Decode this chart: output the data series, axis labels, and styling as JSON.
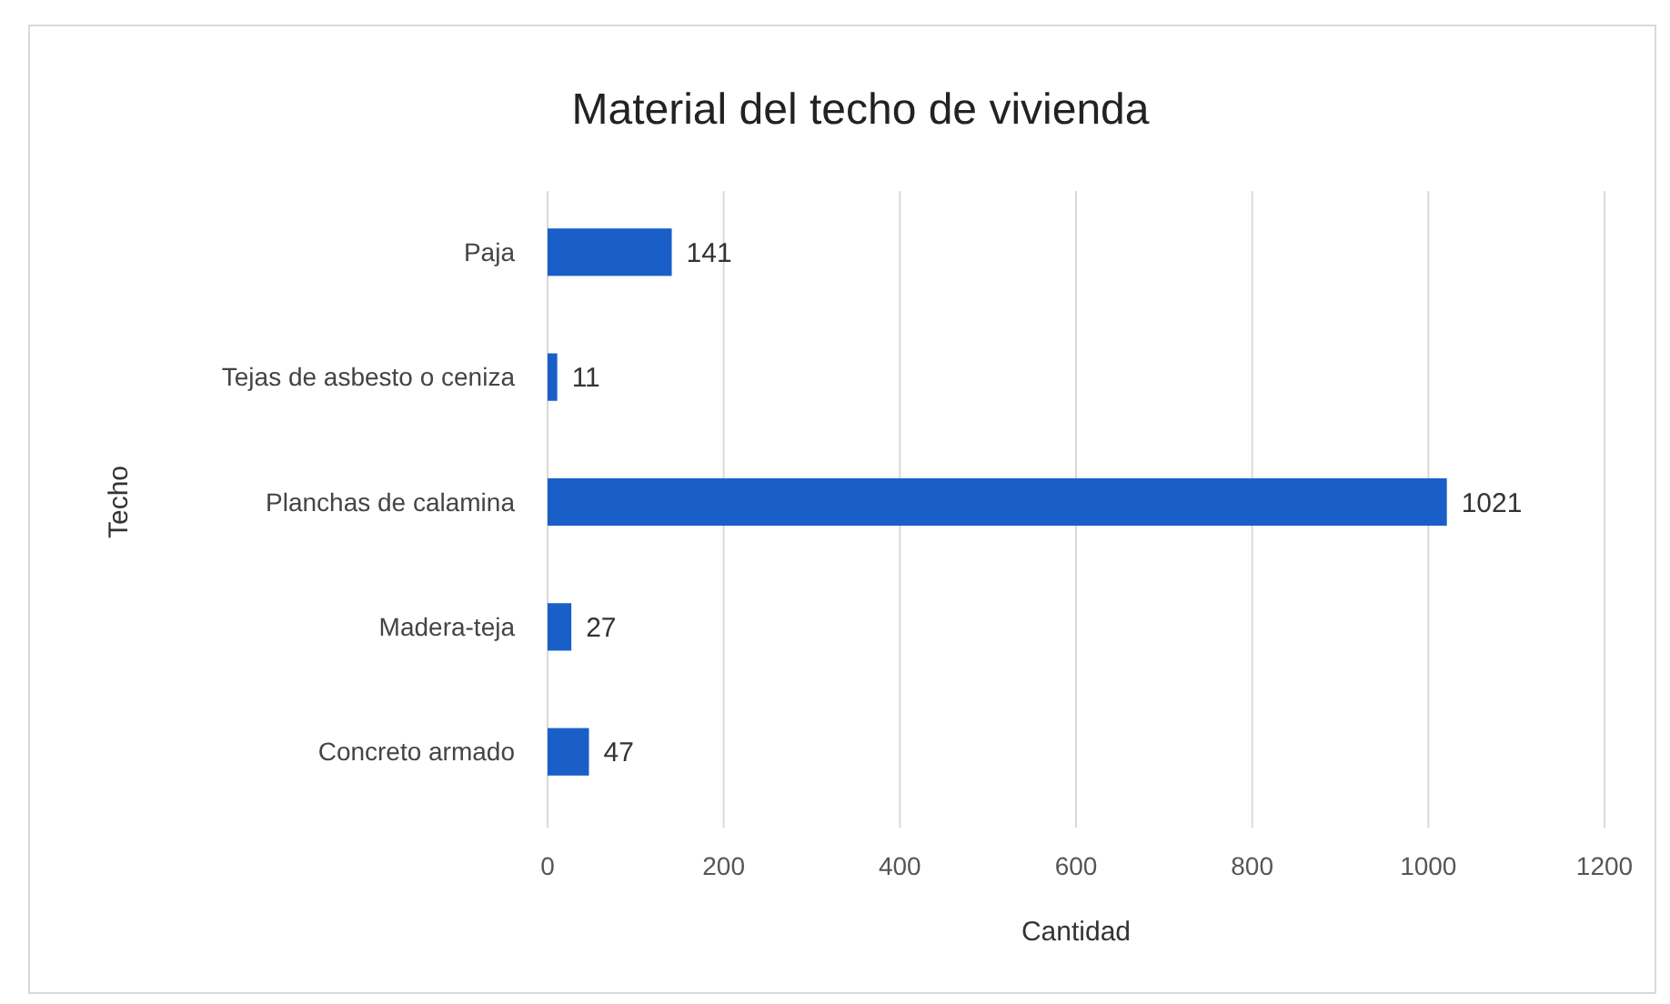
{
  "chart_data": {
    "type": "bar",
    "orientation": "horizontal",
    "title": "Material del techo de vivienda",
    "xlabel": "Cantidad",
    "ylabel": "Techo",
    "categories": [
      "Paja",
      "Tejas de asbesto o ceniza",
      "Planchas de calamina",
      "Madera-teja",
      "Concreto armado"
    ],
    "values": [
      141,
      11,
      1021,
      27,
      47
    ],
    "color": "#1a5fc8",
    "xlim": [
      0,
      1200
    ],
    "xticks": [
      0,
      200,
      400,
      600,
      800,
      1000,
      1200
    ],
    "grid": "x",
    "data_labels": true
  }
}
